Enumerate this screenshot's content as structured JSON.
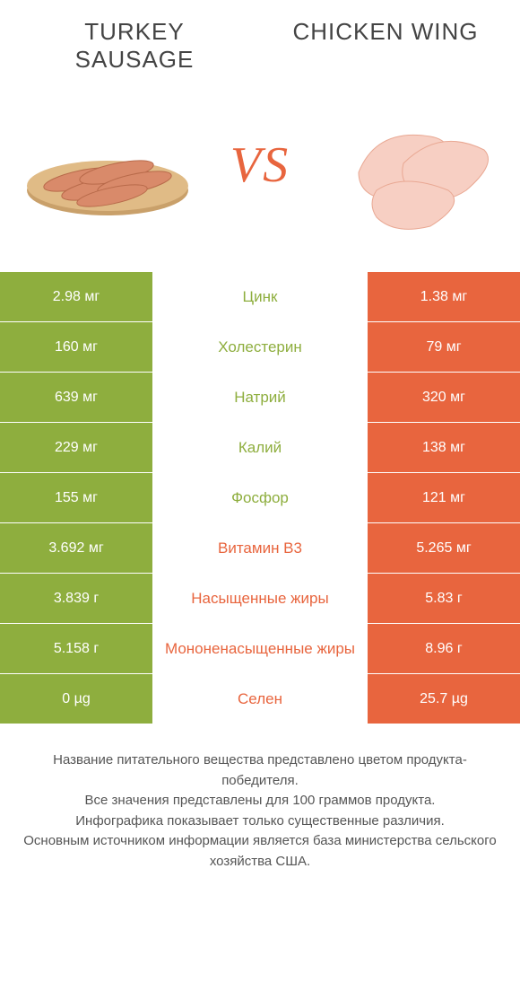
{
  "header": {
    "left_title": "TURKEY SAUSAGE",
    "right_title": "CHICKEN WING",
    "vs_label": "VS"
  },
  "colors": {
    "left_bar": "#8eae3e",
    "right_bar": "#e8653e",
    "mid_green": "#8eae3e",
    "mid_orange": "#e8653e",
    "background": "#ffffff",
    "title_text": "#444444",
    "footer_text": "#555555"
  },
  "typography": {
    "title_fontsize": 26,
    "vs_fontsize": 56,
    "cell_fontsize": 16,
    "mid_fontsize": 17,
    "footer_fontsize": 15
  },
  "rows": [
    {
      "left": "2.98 мг",
      "mid": "Цинк",
      "winner": "left",
      "right": "1.38 мг"
    },
    {
      "left": "160 мг",
      "mid": "Холестерин",
      "winner": "left",
      "right": "79 мг"
    },
    {
      "left": "639 мг",
      "mid": "Натрий",
      "winner": "left",
      "right": "320 мг"
    },
    {
      "left": "229 мг",
      "mid": "Калий",
      "winner": "left",
      "right": "138 мг"
    },
    {
      "left": "155 мг",
      "mid": "Фосфор",
      "winner": "left",
      "right": "121 мг"
    },
    {
      "left": "3.692 мг",
      "mid": "Витамин B3",
      "winner": "right",
      "right": "5.265 мг"
    },
    {
      "left": "3.839 г",
      "mid": "Насыщенные жиры",
      "winner": "right",
      "right": "5.83 г"
    },
    {
      "left": "5.158 г",
      "mid": "Мононенасыщенные жиры",
      "winner": "right",
      "right": "8.96 г"
    },
    {
      "left": "0 µg",
      "mid": "Селен",
      "winner": "right",
      "right": "25.7 µg"
    }
  ],
  "footer": {
    "line1": "Название питательного вещества представлено цветом продукта-победителя.",
    "line2": "Все значения представлены для 100 граммов продукта.",
    "line3": "Инфографика показывает только существенные различия.",
    "line4": "Основным источником информации является база министерства сельского хозяйства США."
  }
}
